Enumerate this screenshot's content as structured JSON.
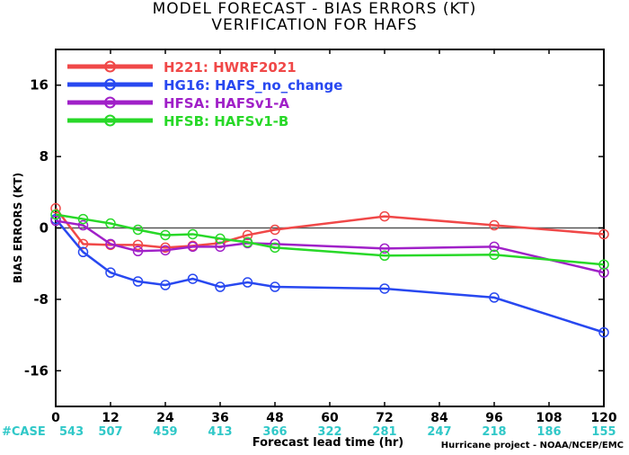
{
  "title_line1": "MODEL FORECAST - BIAS ERRORS (KT)",
  "title_line2": "VERIFICATION FOR HAFS",
  "credit": "Hurricane project - NOAA/NCEP/EMC",
  "case_label": "#CASE",
  "chart_data": {
    "type": "line",
    "xlabel": "Forecast lead time (hr)",
    "ylabel": "BIAS ERRORS (KT)",
    "xlim": [
      0,
      120
    ],
    "ylim": [
      -20,
      20
    ],
    "x_ticks": [
      0,
      12,
      24,
      36,
      48,
      60,
      72,
      84,
      96,
      108,
      120
    ],
    "y_ticks": [
      -16,
      -8,
      0,
      8,
      16
    ],
    "grid": false,
    "zero_line": true,
    "legend_position": "top-left",
    "case_counts": {
      "x": [
        0,
        12,
        24,
        36,
        48,
        60,
        72,
        84,
        96,
        108,
        120
      ],
      "values": [
        "543",
        "507",
        "459",
        "413",
        "366",
        "322",
        "281",
        "247",
        "218",
        "186",
        "155"
      ]
    },
    "series": [
      {
        "name": "H221: HWRF2021",
        "color": "#f04848",
        "x": [
          0,
          6,
          12,
          18,
          24,
          30,
          36,
          42,
          48,
          72,
          96,
          120
        ],
        "y": [
          2.2,
          -1.8,
          -1.9,
          -1.9,
          -2.2,
          -2.0,
          -1.7,
          -0.8,
          -0.2,
          1.3,
          0.3,
          -0.7
        ]
      },
      {
        "name": "HG16: HAFS_no_change",
        "color": "#2848f0",
        "x": [
          0,
          6,
          12,
          18,
          24,
          30,
          36,
          42,
          48,
          72,
          96,
          120
        ],
        "y": [
          1.0,
          -2.7,
          -5.0,
          -6.0,
          -6.4,
          -5.7,
          -6.6,
          -6.1,
          -6.6,
          -6.8,
          -7.8,
          -11.7
        ]
      },
      {
        "name": "HFSA: HAFSv1-A",
        "color": "#a020c8",
        "x": [
          0,
          6,
          12,
          18,
          24,
          30,
          36,
          42,
          48,
          72,
          96,
          120
        ],
        "y": [
          0.8,
          0.3,
          -1.8,
          -2.6,
          -2.5,
          -2.1,
          -2.1,
          -1.7,
          -1.8,
          -2.3,
          -2.1,
          -5.0
        ]
      },
      {
        "name": "HFSB: HAFSv1-B",
        "color": "#28d828",
        "x": [
          0,
          6,
          12,
          18,
          24,
          30,
          36,
          42,
          48,
          72,
          96,
          120
        ],
        "y": [
          1.5,
          1.0,
          0.5,
          -0.2,
          -0.8,
          -0.7,
          -1.2,
          -1.6,
          -2.2,
          -3.1,
          -3.0,
          -4.1
        ]
      }
    ]
  }
}
